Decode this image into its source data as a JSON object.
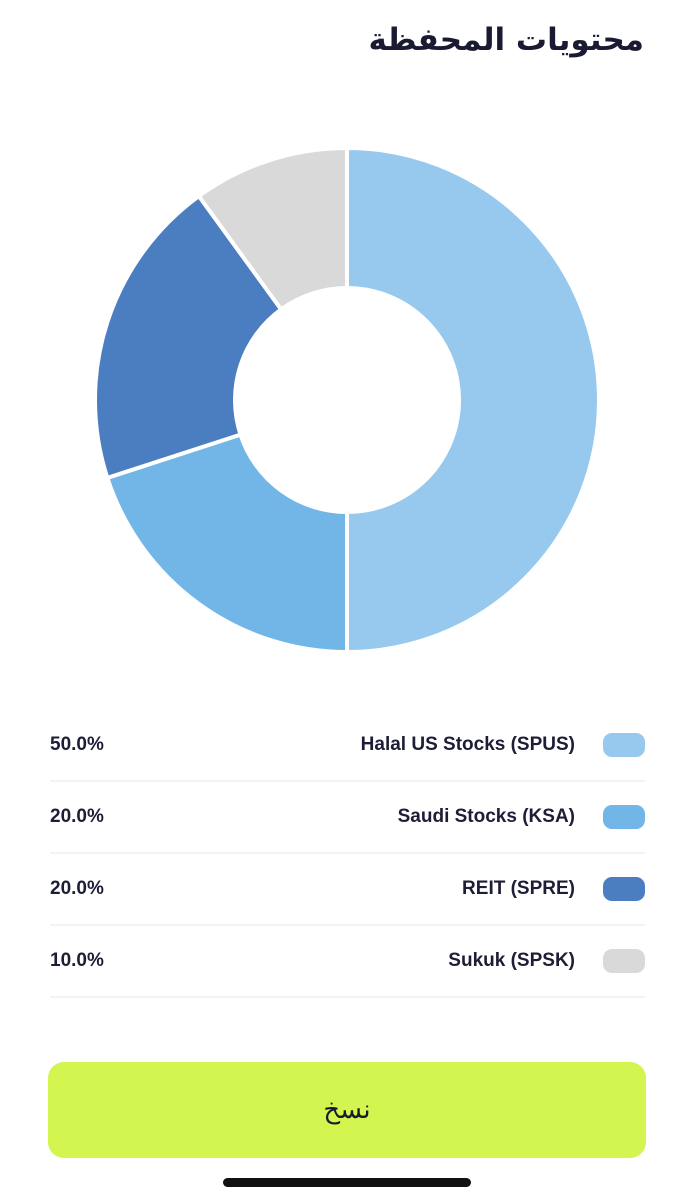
{
  "header": {
    "title": "محتويات المحفظة"
  },
  "chart_data": {
    "type": "pie",
    "subtype": "donut",
    "categories": [
      "Halal US Stocks (SPUS)",
      "Saudi Stocks (KSA)",
      "REIT (SPRE)",
      "Sukuk (SPSK)"
    ],
    "values": [
      50.0,
      20.0,
      20.0,
      10.0
    ],
    "colors": [
      "#97c9ee",
      "#72b5e7",
      "#4b7ec0",
      "#d9d9d9"
    ]
  },
  "legend": {
    "rows": [
      {
        "label": "Halal US Stocks (SPUS)",
        "percent": "50.0%",
        "color": "#97c9ee"
      },
      {
        "label": "Saudi Stocks (KSA)",
        "percent": "20.0%",
        "color": "#72b5e7"
      },
      {
        "label": "REIT (SPRE)",
        "percent": "20.0%",
        "color": "#4b7ec0"
      },
      {
        "label": "Sukuk (SPSK)",
        "percent": "10.0%",
        "color": "#d9d9d9"
      }
    ]
  },
  "actions": {
    "copy_label": "نسخ",
    "copy_color": "#d3f54f"
  }
}
